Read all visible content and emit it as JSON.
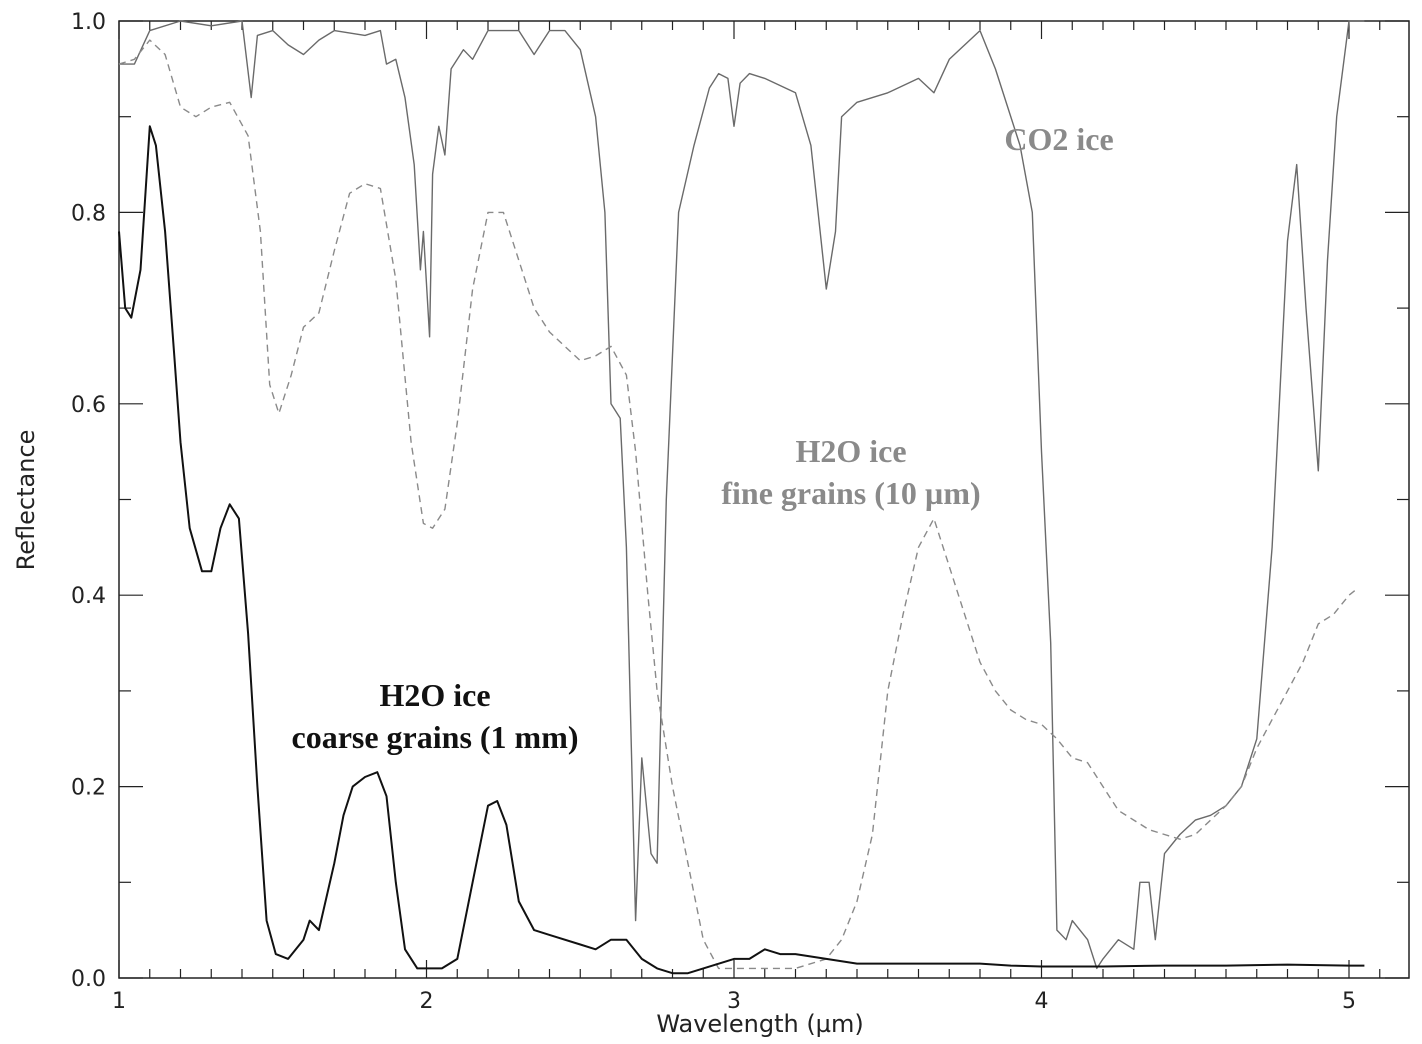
{
  "chart_data": {
    "type": "line",
    "xlabel": "Wavelength (µm)",
    "ylabel": "Reflectance",
    "xlim": [
      1.0,
      5.2
    ],
    "ylim": [
      0.0,
      1.0
    ],
    "grid": false,
    "x_ticks": [
      "1",
      "2",
      "3",
      "4",
      "5"
    ],
    "y_ticks": [
      "0.0",
      "0.2",
      "0.4",
      "0.6",
      "0.8",
      "1.0"
    ],
    "annotations": [
      {
        "id": "co2",
        "lines": [
          "CO2 ice"
        ],
        "color": "#8a8a8a"
      },
      {
        "id": "fine",
        "lines": [
          "H2O ice",
          "fine grains (10 µm)"
        ],
        "color": "#8a8a8a"
      },
      {
        "id": "coarse",
        "lines": [
          "H2O ice",
          "coarse grains (1 mm)"
        ],
        "color": "#111111"
      }
    ],
    "series": [
      {
        "key": "co2",
        "style": "solid",
        "color": "#6a6a6a",
        "stroke": "thin",
        "points": [
          [
            1.0,
            0.955
          ],
          [
            1.05,
            0.955
          ],
          [
            1.1,
            0.99
          ],
          [
            1.2,
            1.0
          ],
          [
            1.3,
            0.995
          ],
          [
            1.4,
            1.0
          ],
          [
            1.43,
            0.92
          ],
          [
            1.45,
            0.985
          ],
          [
            1.5,
            0.99
          ],
          [
            1.55,
            0.975
          ],
          [
            1.6,
            0.965
          ],
          [
            1.65,
            0.98
          ],
          [
            1.7,
            0.99
          ],
          [
            1.8,
            0.985
          ],
          [
            1.85,
            0.99
          ],
          [
            1.87,
            0.955
          ],
          [
            1.9,
            0.96
          ],
          [
            1.93,
            0.92
          ],
          [
            1.96,
            0.85
          ],
          [
            1.98,
            0.74
          ],
          [
            1.99,
            0.78
          ],
          [
            2.01,
            0.67
          ],
          [
            2.02,
            0.84
          ],
          [
            2.04,
            0.89
          ],
          [
            2.06,
            0.86
          ],
          [
            2.08,
            0.95
          ],
          [
            2.12,
            0.97
          ],
          [
            2.15,
            0.96
          ],
          [
            2.2,
            0.99
          ],
          [
            2.3,
            0.99
          ],
          [
            2.35,
            0.965
          ],
          [
            2.4,
            0.99
          ],
          [
            2.45,
            0.99
          ],
          [
            2.5,
            0.97
          ],
          [
            2.55,
            0.9
          ],
          [
            2.58,
            0.8
          ],
          [
            2.6,
            0.6
          ],
          [
            2.63,
            0.585
          ],
          [
            2.65,
            0.45
          ],
          [
            2.68,
            0.06
          ],
          [
            2.7,
            0.23
          ],
          [
            2.73,
            0.13
          ],
          [
            2.75,
            0.12
          ],
          [
            2.78,
            0.5
          ],
          [
            2.82,
            0.8
          ],
          [
            2.87,
            0.87
          ],
          [
            2.92,
            0.93
          ],
          [
            2.95,
            0.945
          ],
          [
            2.98,
            0.94
          ],
          [
            3.0,
            0.89
          ],
          [
            3.02,
            0.935
          ],
          [
            3.05,
            0.945
          ],
          [
            3.1,
            0.94
          ],
          [
            3.2,
            0.925
          ],
          [
            3.25,
            0.87
          ],
          [
            3.3,
            0.72
          ],
          [
            3.33,
            0.78
          ],
          [
            3.35,
            0.9
          ],
          [
            3.4,
            0.915
          ],
          [
            3.45,
            0.92
          ],
          [
            3.5,
            0.925
          ],
          [
            3.6,
            0.94
          ],
          [
            3.65,
            0.925
          ],
          [
            3.7,
            0.96
          ],
          [
            3.8,
            0.99
          ],
          [
            3.85,
            0.95
          ],
          [
            3.93,
            0.87
          ],
          [
            3.97,
            0.8
          ],
          [
            4.0,
            0.55
          ],
          [
            4.03,
            0.35
          ],
          [
            4.05,
            0.05
          ],
          [
            4.08,
            0.04
          ],
          [
            4.1,
            0.06
          ],
          [
            4.15,
            0.04
          ],
          [
            4.18,
            0.01
          ],
          [
            4.2,
            0.02
          ],
          [
            4.25,
            0.04
          ],
          [
            4.3,
            0.03
          ],
          [
            4.32,
            0.1
          ],
          [
            4.35,
            0.1
          ],
          [
            4.37,
            0.04
          ],
          [
            4.4,
            0.13
          ],
          [
            4.45,
            0.15
          ],
          [
            4.5,
            0.165
          ],
          [
            4.55,
            0.17
          ],
          [
            4.6,
            0.18
          ],
          [
            4.65,
            0.2
          ],
          [
            4.7,
            0.25
          ],
          [
            4.75,
            0.45
          ],
          [
            4.8,
            0.77
          ],
          [
            4.83,
            0.85
          ],
          [
            4.86,
            0.7
          ],
          [
            4.9,
            0.53
          ],
          [
            4.93,
            0.75
          ],
          [
            4.96,
            0.9
          ],
          [
            5.0,
            1.0
          ],
          [
            5.05,
            1.0
          ]
        ]
      },
      {
        "key": "fine",
        "style": "dashed",
        "color": "#8a8a8a",
        "stroke": "thin",
        "points": [
          [
            1.0,
            0.955
          ],
          [
            1.05,
            0.96
          ],
          [
            1.1,
            0.98
          ],
          [
            1.15,
            0.965
          ],
          [
            1.2,
            0.91
          ],
          [
            1.25,
            0.9
          ],
          [
            1.3,
            0.91
          ],
          [
            1.36,
            0.915
          ],
          [
            1.42,
            0.88
          ],
          [
            1.46,
            0.78
          ],
          [
            1.49,
            0.62
          ],
          [
            1.52,
            0.59
          ],
          [
            1.56,
            0.63
          ],
          [
            1.6,
            0.68
          ],
          [
            1.65,
            0.695
          ],
          [
            1.7,
            0.76
          ],
          [
            1.75,
            0.82
          ],
          [
            1.8,
            0.83
          ],
          [
            1.85,
            0.825
          ],
          [
            1.9,
            0.73
          ],
          [
            1.95,
            0.56
          ],
          [
            1.99,
            0.475
          ],
          [
            2.02,
            0.47
          ],
          [
            2.06,
            0.49
          ],
          [
            2.1,
            0.58
          ],
          [
            2.15,
            0.72
          ],
          [
            2.2,
            0.8
          ],
          [
            2.25,
            0.8
          ],
          [
            2.3,
            0.75
          ],
          [
            2.35,
            0.7
          ],
          [
            2.4,
            0.675
          ],
          [
            2.45,
            0.66
          ],
          [
            2.5,
            0.645
          ],
          [
            2.55,
            0.65
          ],
          [
            2.6,
            0.66
          ],
          [
            2.65,
            0.63
          ],
          [
            2.68,
            0.55
          ],
          [
            2.72,
            0.4
          ],
          [
            2.75,
            0.3
          ],
          [
            2.8,
            0.2
          ],
          [
            2.85,
            0.12
          ],
          [
            2.9,
            0.04
          ],
          [
            2.95,
            0.01
          ],
          [
            3.0,
            0.01
          ],
          [
            3.1,
            0.01
          ],
          [
            3.2,
            0.01
          ],
          [
            3.3,
            0.02
          ],
          [
            3.35,
            0.04
          ],
          [
            3.4,
            0.08
          ],
          [
            3.45,
            0.15
          ],
          [
            3.5,
            0.3
          ],
          [
            3.55,
            0.38
          ],
          [
            3.6,
            0.45
          ],
          [
            3.65,
            0.48
          ],
          [
            3.7,
            0.43
          ],
          [
            3.75,
            0.38
          ],
          [
            3.8,
            0.33
          ],
          [
            3.85,
            0.3
          ],
          [
            3.9,
            0.28
          ],
          [
            3.95,
            0.27
          ],
          [
            4.0,
            0.265
          ],
          [
            4.05,
            0.25
          ],
          [
            4.1,
            0.23
          ],
          [
            4.15,
            0.225
          ],
          [
            4.2,
            0.2
          ],
          [
            4.25,
            0.175
          ],
          [
            4.3,
            0.165
          ],
          [
            4.35,
            0.155
          ],
          [
            4.4,
            0.15
          ],
          [
            4.45,
            0.145
          ],
          [
            4.5,
            0.15
          ],
          [
            4.55,
            0.165
          ],
          [
            4.6,
            0.18
          ],
          [
            4.65,
            0.2
          ],
          [
            4.7,
            0.24
          ],
          [
            4.75,
            0.27
          ],
          [
            4.8,
            0.3
          ],
          [
            4.85,
            0.33
          ],
          [
            4.9,
            0.37
          ],
          [
            4.95,
            0.38
          ],
          [
            5.0,
            0.4
          ],
          [
            5.02,
            0.405
          ]
        ]
      },
      {
        "key": "coarse",
        "style": "solid",
        "color": "#111111",
        "stroke": "thick",
        "points": [
          [
            1.0,
            0.78
          ],
          [
            1.02,
            0.7
          ],
          [
            1.04,
            0.69
          ],
          [
            1.07,
            0.74
          ],
          [
            1.09,
            0.84
          ],
          [
            1.1,
            0.89
          ],
          [
            1.12,
            0.87
          ],
          [
            1.15,
            0.78
          ],
          [
            1.18,
            0.65
          ],
          [
            1.2,
            0.56
          ],
          [
            1.23,
            0.47
          ],
          [
            1.27,
            0.425
          ],
          [
            1.3,
            0.425
          ],
          [
            1.33,
            0.47
          ],
          [
            1.36,
            0.495
          ],
          [
            1.39,
            0.48
          ],
          [
            1.42,
            0.36
          ],
          [
            1.45,
            0.2
          ],
          [
            1.48,
            0.06
          ],
          [
            1.51,
            0.025
          ],
          [
            1.55,
            0.02
          ],
          [
            1.6,
            0.04
          ],
          [
            1.62,
            0.06
          ],
          [
            1.65,
            0.05
          ],
          [
            1.7,
            0.12
          ],
          [
            1.73,
            0.17
          ],
          [
            1.76,
            0.2
          ],
          [
            1.8,
            0.21
          ],
          [
            1.84,
            0.215
          ],
          [
            1.87,
            0.19
          ],
          [
            1.9,
            0.1
          ],
          [
            1.93,
            0.03
          ],
          [
            1.97,
            0.01
          ],
          [
            2.0,
            0.01
          ],
          [
            2.05,
            0.01
          ],
          [
            2.1,
            0.02
          ],
          [
            2.15,
            0.1
          ],
          [
            2.2,
            0.18
          ],
          [
            2.23,
            0.185
          ],
          [
            2.26,
            0.16
          ],
          [
            2.3,
            0.08
          ],
          [
            2.35,
            0.05
          ],
          [
            2.4,
            0.045
          ],
          [
            2.5,
            0.035
          ],
          [
            2.55,
            0.03
          ],
          [
            2.6,
            0.04
          ],
          [
            2.65,
            0.04
          ],
          [
            2.7,
            0.02
          ],
          [
            2.75,
            0.01
          ],
          [
            2.8,
            0.005
          ],
          [
            2.85,
            0.005
          ],
          [
            2.9,
            0.01
          ],
          [
            3.0,
            0.02
          ],
          [
            3.05,
            0.02
          ],
          [
            3.1,
            0.03
          ],
          [
            3.15,
            0.025
          ],
          [
            3.2,
            0.025
          ],
          [
            3.3,
            0.02
          ],
          [
            3.4,
            0.015
          ],
          [
            3.5,
            0.015
          ],
          [
            3.6,
            0.015
          ],
          [
            3.7,
            0.015
          ],
          [
            3.8,
            0.015
          ],
          [
            3.9,
            0.013
          ],
          [
            4.0,
            0.012
          ],
          [
            4.2,
            0.012
          ],
          [
            4.4,
            0.013
          ],
          [
            4.6,
            0.013
          ],
          [
            4.8,
            0.014
          ],
          [
            5.0,
            0.013
          ],
          [
            5.05,
            0.013
          ]
        ]
      }
    ]
  }
}
